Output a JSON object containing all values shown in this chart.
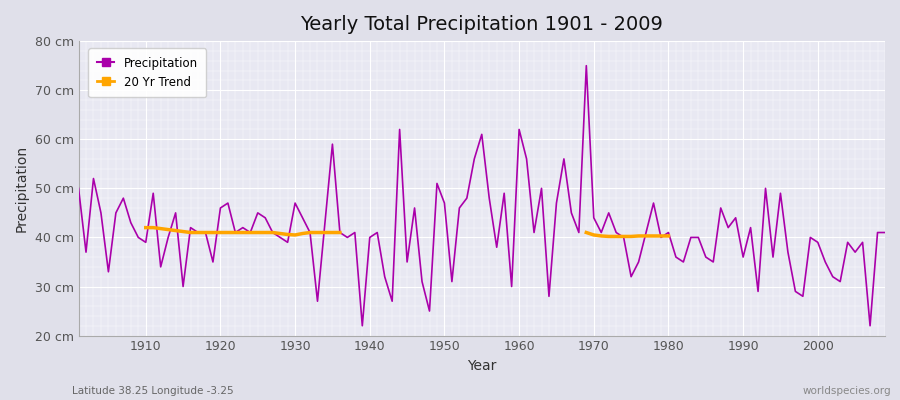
{
  "title": "Yearly Total Precipitation 1901 - 2009",
  "xlabel": "Year",
  "ylabel": "Precipitation",
  "subtitle_left": "Latitude 38.25 Longitude -3.25",
  "subtitle_right": "worldspecies.org",
  "years": [
    1901,
    1902,
    1903,
    1904,
    1905,
    1906,
    1907,
    1908,
    1909,
    1910,
    1911,
    1912,
    1913,
    1914,
    1915,
    1916,
    1917,
    1918,
    1919,
    1920,
    1921,
    1922,
    1923,
    1924,
    1925,
    1926,
    1927,
    1928,
    1929,
    1930,
    1931,
    1932,
    1933,
    1934,
    1935,
    1936,
    1937,
    1938,
    1939,
    1940,
    1941,
    1942,
    1943,
    1944,
    1945,
    1946,
    1947,
    1948,
    1949,
    1950,
    1951,
    1952,
    1953,
    1954,
    1955,
    1956,
    1957,
    1958,
    1959,
    1960,
    1961,
    1962,
    1963,
    1964,
    1965,
    1966,
    1967,
    1968,
    1969,
    1970,
    1971,
    1972,
    1973,
    1974,
    1975,
    1976,
    1977,
    1978,
    1979,
    1980,
    1981,
    1982,
    1983,
    1984,
    1985,
    1986,
    1987,
    1988,
    1989,
    1990,
    1991,
    1992,
    1993,
    1994,
    1995,
    1996,
    1997,
    1998,
    1999,
    2000,
    2001,
    2002,
    2003,
    2004,
    2005,
    2006,
    2007,
    2008,
    2009
  ],
  "precip": [
    50,
    37,
    52,
    45,
    33,
    45,
    48,
    43,
    40,
    39,
    49,
    34,
    40,
    45,
    30,
    42,
    41,
    41,
    35,
    46,
    47,
    41,
    42,
    41,
    45,
    44,
    41,
    40,
    39,
    47,
    44,
    41,
    27,
    43,
    59,
    41,
    40,
    41,
    22,
    40,
    41,
    32,
    27,
    62,
    35,
    46,
    31,
    25,
    51,
    47,
    31,
    46,
    48,
    56,
    61,
    48,
    38,
    49,
    30,
    62,
    56,
    41,
    50,
    28,
    47,
    56,
    45,
    41,
    75,
    44,
    41,
    45,
    41,
    40,
    32,
    35,
    41,
    47,
    40,
    41,
    36,
    35,
    40,
    40,
    36,
    35,
    46,
    42,
    44,
    36,
    42,
    29,
    50,
    36,
    49,
    37,
    29,
    28,
    40,
    39,
    35,
    32,
    31,
    39,
    37,
    39,
    22,
    41,
    41
  ],
  "trend_segment1_years": [
    1910,
    1911,
    1912,
    1913,
    1914,
    1915,
    1916,
    1917,
    1918,
    1919,
    1920,
    1921,
    1922,
    1923,
    1924,
    1925,
    1926,
    1927,
    1928,
    1929,
    1930,
    1931,
    1932,
    1933,
    1934,
    1935,
    1936
  ],
  "trend_segment1_values": [
    42.0,
    42.0,
    41.8,
    41.6,
    41.4,
    41.2,
    41.0,
    41.0,
    41.0,
    41.0,
    41.0,
    41.0,
    41.0,
    41.0,
    41.0,
    41.0,
    41.0,
    41.0,
    40.8,
    40.6,
    40.5,
    40.8,
    41.0,
    41.0,
    41.0,
    41.0,
    41.0
  ],
  "trend_segment2_years": [
    1969,
    1970,
    1971,
    1972,
    1973,
    1974,
    1975,
    1976,
    1977,
    1978,
    1979,
    1980
  ],
  "trend_segment2_values": [
    41.0,
    40.5,
    40.3,
    40.2,
    40.2,
    40.2,
    40.2,
    40.3,
    40.3,
    40.3,
    40.3,
    40.3
  ],
  "precip_color": "#AA00AA",
  "trend_color": "#FFA500",
  "fig_bg_color": "#E0E0EA",
  "plot_bg_color": "#E8E8F2",
  "ylim": [
    20,
    80
  ],
  "yticks": [
    20,
    30,
    40,
    50,
    60,
    70,
    80
  ],
  "xlim": [
    1901,
    2009
  ],
  "xticks": [
    1910,
    1920,
    1930,
    1940,
    1950,
    1960,
    1970,
    1980,
    1990,
    2000
  ]
}
